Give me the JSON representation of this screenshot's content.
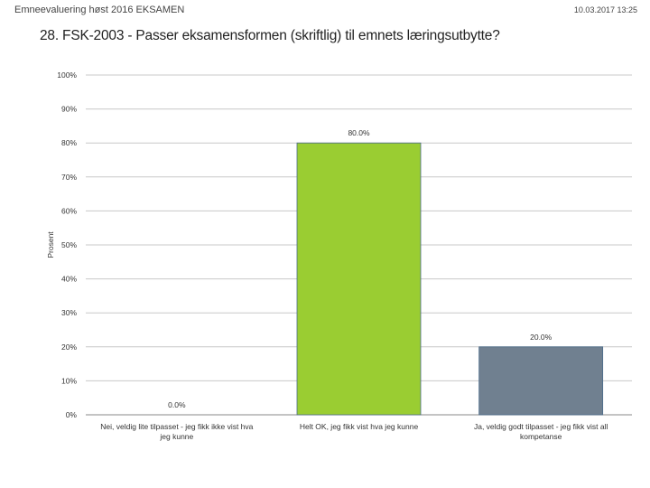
{
  "header": {
    "left": "Emneevaluering høst 2016 EKSAMEN",
    "right": "10.03.2017 13:25"
  },
  "chart_data": {
    "type": "bar",
    "title": "28. FSK-2003 - Passer eksamensformen (skriftlig) til emnets læringsutbytte?",
    "ylabel": "Prosent",
    "xlabel": "",
    "ylim": [
      0,
      100
    ],
    "y_ticks": [
      "0%",
      "10%",
      "20%",
      "30%",
      "40%",
      "50%",
      "60%",
      "70%",
      "80%",
      "90%",
      "100%"
    ],
    "grid": true,
    "categories": [
      [
        "Nei, veldig lite tilpasset - jeg fikk ikke vist hva",
        "jeg kunne"
      ],
      [
        "Helt OK, jeg fikk vist hva jeg kunne"
      ],
      [
        "Ja, veldig godt tilpasset - jeg fikk vist all",
        "kompetanse"
      ]
    ],
    "values": [
      0.0,
      80.0,
      20.0
    ],
    "data_labels": [
      "0.0%",
      "80.0%",
      "20.0%"
    ],
    "colors": [
      "#9acd32",
      "#9acd32",
      "#708090"
    ],
    "gridline_color": "#c8c8c8",
    "axis_color": "#8a8a8a"
  }
}
